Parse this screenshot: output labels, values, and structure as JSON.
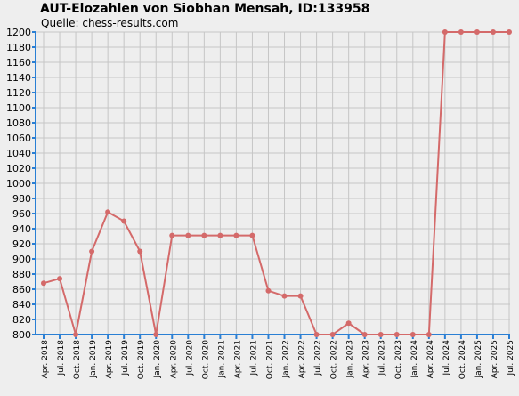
{
  "chart_data": {
    "type": "line",
    "title": "AUT-Elozahlen von Siobhan Mensah, ID:133958",
    "subtitle": "Quelle: chess-results.com",
    "xlabel": "",
    "ylabel": "",
    "ylim": [
      800,
      1200
    ],
    "ytick_step": 20,
    "grid": true,
    "categories": [
      "Apr. 2018",
      "Jul. 2018",
      "Oct. 2018",
      "Jan. 2019",
      "Apr. 2019",
      "Jul. 2019",
      "Oct. 2019",
      "Jan. 2020",
      "Apr. 2020",
      "Jul. 2020",
      "Oct. 2020",
      "Jan. 2021",
      "Apr. 2021",
      "Jul. 2021",
      "Oct. 2021",
      "Jan. 2022",
      "Apr. 2022",
      "Jul. 2022",
      "Oct. 2022",
      "Jan. 2023",
      "Apr. 2023",
      "Jul. 2023",
      "Oct. 2023",
      "Jan. 2024",
      "Apr. 2024",
      "Jul. 2024",
      "Oct. 2024",
      "Jan. 2025",
      "Apr. 2025",
      "Jul. 2025"
    ],
    "series": [
      {
        "values": [
          868,
          874,
          800,
          910,
          962,
          950,
          910,
          800,
          931,
          931,
          931,
          931,
          931,
          931,
          858,
          851,
          851,
          800,
          800,
          815,
          800,
          800,
          800,
          800,
          800,
          1200,
          1200,
          1200,
          1200,
          1200
        ]
      }
    ],
    "colors": {
      "line": "#d46a6a",
      "marker": "#d46a6a",
      "grid": "#c6c6c6",
      "axis": "#2a7fd4",
      "background": "#eeeeee"
    }
  }
}
